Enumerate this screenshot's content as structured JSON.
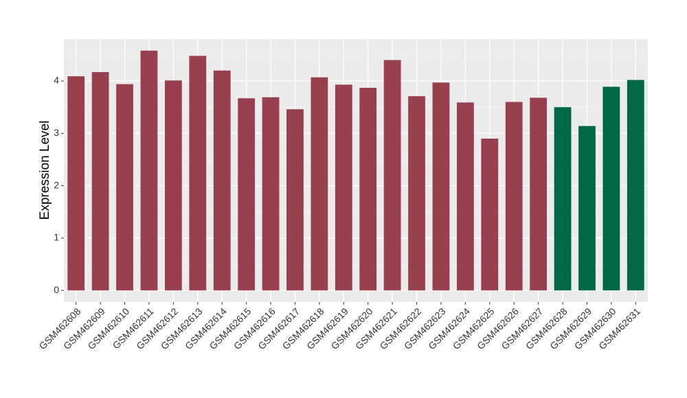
{
  "chart_data": {
    "type": "bar",
    "y_label": "Expression Level",
    "categories": [
      "GSM462608",
      "GSM462609",
      "GSM462610",
      "GSM462611",
      "GSM462612",
      "GSM462613",
      "GSM462614",
      "GSM462615",
      "GSM462616",
      "GSM462617",
      "GSM462618",
      "GSM462619",
      "GSM462620",
      "GSM462621",
      "GSM462622",
      "GSM462623",
      "GSM462624",
      "GSM462625",
      "GSM462626",
      "GSM462627",
      "GSM462628",
      "GSM462629",
      "GSM462630",
      "GSM462631"
    ],
    "values": [
      4.09,
      4.17,
      3.94,
      4.58,
      4.01,
      4.48,
      4.2,
      3.67,
      3.69,
      3.46,
      4.07,
      3.93,
      3.87,
      4.4,
      3.71,
      3.97,
      3.59,
      2.9,
      3.6,
      3.68,
      3.5,
      3.14,
      3.89,
      4.02
    ],
    "colors": [
      "#99404f",
      "#99404f",
      "#99404f",
      "#99404f",
      "#99404f",
      "#99404f",
      "#99404f",
      "#99404f",
      "#99404f",
      "#99404f",
      "#99404f",
      "#99404f",
      "#99404f",
      "#99404f",
      "#99404f",
      "#99404f",
      "#99404f",
      "#99404f",
      "#99404f",
      "#99404f",
      "#006845",
      "#006845",
      "#006845",
      "#006845"
    ],
    "ylim": [
      -0.22,
      4.8
    ],
    "yticks": [
      0,
      1,
      2,
      3,
      4
    ],
    "yminorticks": [
      0.5,
      1.5,
      2.5,
      3.5,
      4.5
    ],
    "grid": true
  }
}
